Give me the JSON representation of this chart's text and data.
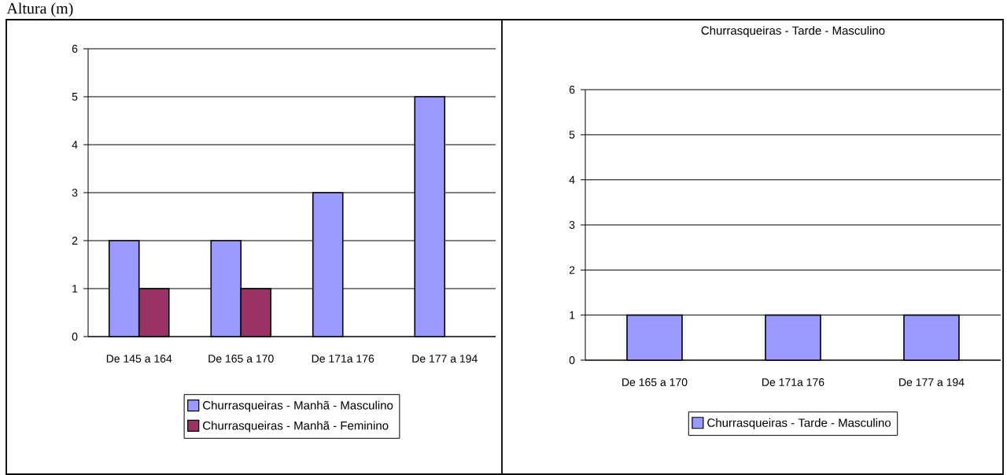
{
  "chart_data": [
    {
      "type": "bar",
      "annotations": [
        "Altura (m)"
      ],
      "categories": [
        "De  145 a 164",
        "De 165 a 170",
        "De 171a 176",
        "De 177 a 194"
      ],
      "series": [
        {
          "name": "Churrasqueiras - Manhã - Masculino",
          "color": "#9999ff",
          "values": [
            2,
            2,
            3,
            5
          ]
        },
        {
          "name": "Churrasqueiras - Manhã - Feminino",
          "color": "#993366",
          "values": [
            1,
            1,
            null,
            null
          ]
        }
      ],
      "ylim": [
        0,
        6
      ],
      "yticks": [
        0,
        1,
        2,
        3,
        4,
        5,
        6
      ],
      "grid": "y",
      "legend": "bottom"
    },
    {
      "type": "bar",
      "title": "Churrasqueiras - Tarde - Masculino",
      "categories": [
        "De 165 a 170",
        "De 171a 176",
        "De 177 a 194"
      ],
      "series": [
        {
          "name": "Churrasqueiras - Tarde - Masculino",
          "color": "#9999ff",
          "values": [
            1,
            1,
            1
          ]
        }
      ],
      "ylim": [
        0,
        6
      ],
      "yticks": [
        0,
        1,
        2,
        3,
        4,
        5,
        6
      ],
      "grid": "y",
      "legend": "bottom"
    }
  ]
}
